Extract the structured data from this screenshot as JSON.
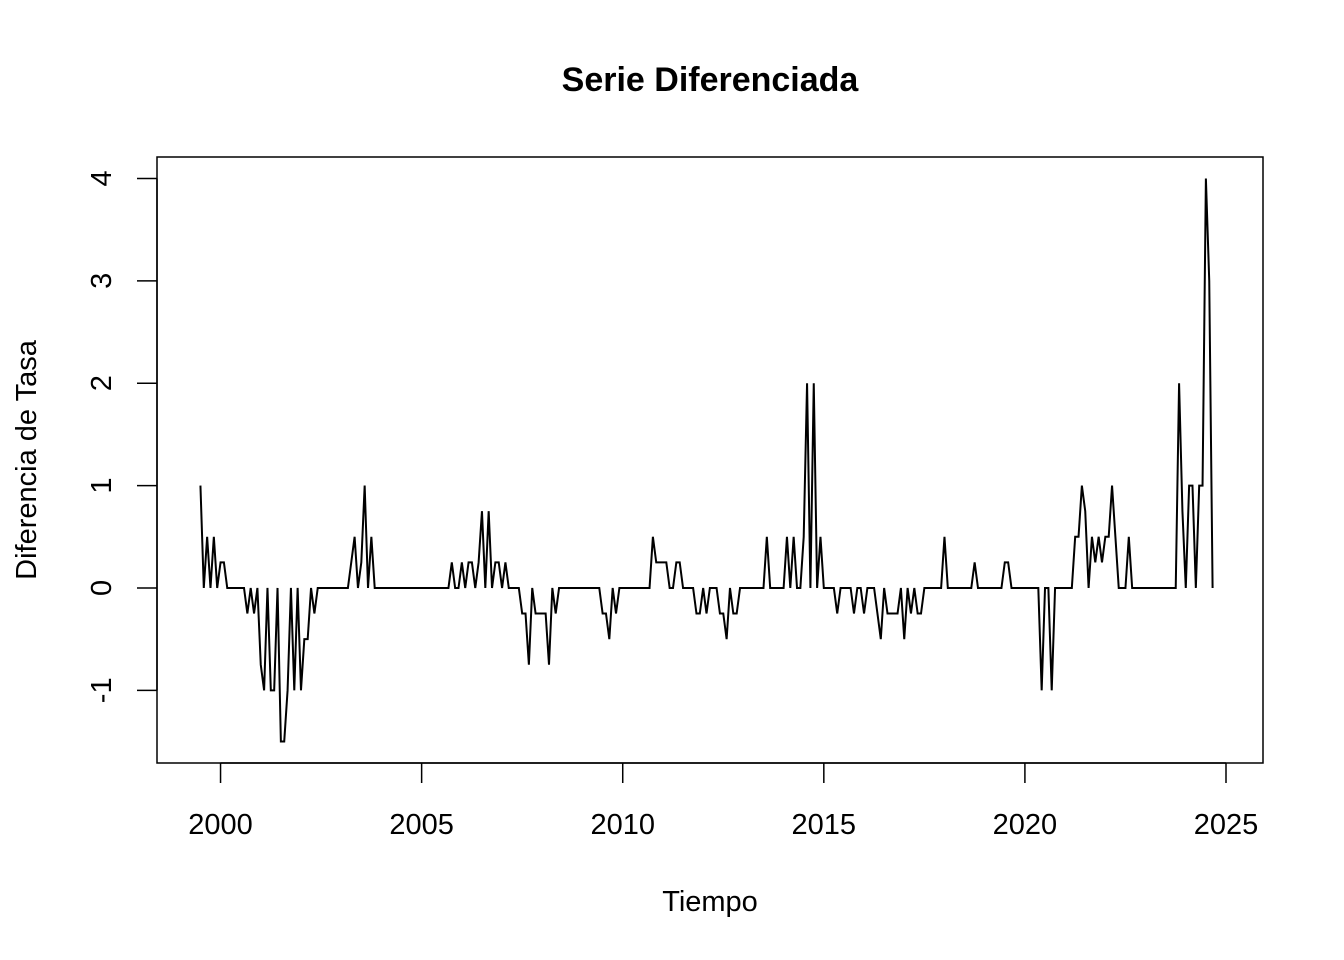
{
  "chart_data": {
    "type": "line",
    "title": "Serie Diferenciada",
    "xlabel": "Tiempo",
    "ylabel": "Diferencia de Tasa",
    "xlim": [
      1998.42,
      2025.92
    ],
    "ylim": [
      -1.71,
      4.21
    ],
    "x_ticks": [
      2000,
      2005,
      2010,
      2015,
      2020,
      2025
    ],
    "x_tick_labels": [
      "2000",
      "2005",
      "2010",
      "2015",
      "2020",
      "2025"
    ],
    "y_ticks": [
      -1,
      0,
      1,
      2,
      3,
      4
    ],
    "y_tick_labels": [
      "-1",
      "0",
      "1",
      "2",
      "3",
      "4"
    ],
    "grid": false,
    "legend": "none",
    "line_color": "#000000",
    "series": [
      {
        "x_start": 1999.5,
        "x_step": 0.08333333,
        "values": [
          1.0,
          0,
          0.5,
          0,
          0.5,
          0,
          0.25,
          0.25,
          0,
          0,
          0,
          0,
          0,
          0,
          -0.25,
          0,
          -0.25,
          0,
          -0.75,
          -1.0,
          0,
          -1.0,
          -1.0,
          0,
          -1.5,
          -1.5,
          -1.0,
          0,
          -1.0,
          0,
          -1.0,
          -0.5,
          -0.5,
          0,
          -0.25,
          0,
          0,
          0,
          0,
          0,
          0,
          0,
          0,
          0,
          0,
          0.25,
          0.5,
          0,
          0.25,
          1.0,
          0,
          0.5,
          0,
          0,
          0,
          0,
          0,
          0,
          0,
          0,
          0,
          0,
          0,
          0,
          0,
          0,
          0,
          0,
          0,
          0,
          0,
          0,
          0,
          0,
          0,
          0.25,
          0,
          0,
          0.25,
          0,
          0.25,
          0.25,
          0,
          0.25,
          0.75,
          0,
          0.75,
          0,
          0.25,
          0.25,
          0,
          0.25,
          0,
          0,
          0,
          0,
          -0.25,
          -0.25,
          -0.75,
          0,
          -0.25,
          -0.25,
          -0.25,
          -0.25,
          -0.75,
          0,
          -0.25,
          0,
          0,
          0,
          0,
          0,
          0,
          0,
          0,
          0,
          0,
          0,
          0,
          0,
          -0.25,
          -0.25,
          -0.5,
          0,
          -0.25,
          0,
          0,
          0,
          0,
          0,
          0,
          0,
          0,
          0,
          0,
          0.5,
          0.25,
          0.25,
          0.25,
          0.25,
          0,
          0,
          0.25,
          0.25,
          0,
          0,
          0,
          0,
          -0.25,
          -0.25,
          0,
          -0.25,
          0,
          0,
          0,
          -0.25,
          -0.25,
          -0.5,
          0,
          -0.25,
          -0.25,
          0,
          0,
          0,
          0,
          0,
          0,
          0,
          0,
          0.5,
          0,
          0,
          0,
          0,
          0,
          0.5,
          0,
          0.5,
          0,
          0,
          0.5,
          2.0,
          0,
          2.0,
          0,
          0.5,
          0,
          0,
          0,
          0,
          -0.25,
          0,
          0,
          0,
          0,
          -0.25,
          0,
          0,
          -0.25,
          0,
          0,
          0,
          -0.25,
          -0.5,
          0,
          -0.25,
          -0.25,
          -0.25,
          -0.25,
          0,
          -0.5,
          0,
          -0.25,
          0,
          -0.25,
          -0.25,
          0,
          0,
          0,
          0,
          0,
          0,
          0.5,
          0,
          0,
          0,
          0,
          0,
          0,
          0,
          0,
          0.25,
          0,
          0,
          0,
          0,
          0,
          0,
          0,
          0,
          0.25,
          0.25,
          0,
          0,
          0,
          0,
          0,
          0,
          0,
          0,
          0,
          -1.0,
          0,
          0,
          -1.0,
          0,
          0,
          0,
          0,
          0,
          0,
          0.5,
          0.5,
          1.0,
          0.75,
          0,
          0.5,
          0.25,
          0.5,
          0.25,
          0.5,
          0.5,
          1.0,
          0.5,
          0,
          0,
          0,
          0.5,
          0,
          0,
          0,
          0,
          0,
          0,
          0,
          0,
          0,
          0,
          0,
          0,
          0,
          0,
          2.0,
          0.75,
          0,
          1.0,
          1.0,
          0,
          1.0,
          1.0,
          4.0,
          3.0,
          0
        ]
      }
    ]
  }
}
